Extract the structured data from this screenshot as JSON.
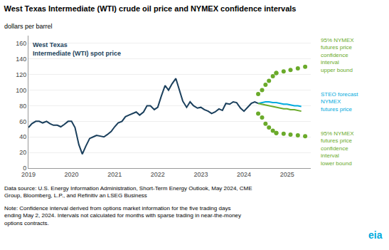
{
  "chart_data": {
    "type": "line",
    "title": "West Texas Intermediate (WTI) crude oil price and NYMEX confidence intervals",
    "y_label": "dollars per barrel",
    "xlim": [
      2019,
      2025.55
    ],
    "xticks": [
      2019,
      2020,
      2021,
      2022,
      2023,
      2024,
      2025
    ],
    "ylim": [
      0,
      170
    ],
    "yticks": [
      0,
      20,
      40,
      60,
      80,
      100,
      120,
      140,
      160
    ],
    "grid": "y",
    "series": [
      {
        "color": "#1a3f5c",
        "line_style": "solid",
        "marker": "none",
        "x": [
          2019.0,
          2019.08,
          2019.17,
          2019.25,
          2019.33,
          2019.42,
          2019.5,
          2019.58,
          2019.67,
          2019.75,
          2019.83,
          2019.92,
          2020.0,
          2020.08,
          2020.17,
          2020.25,
          2020.33,
          2020.42,
          2020.5,
          2020.58,
          2020.67,
          2020.75,
          2020.83,
          2020.92,
          2021.0,
          2021.08,
          2021.17,
          2021.25,
          2021.33,
          2021.42,
          2021.5,
          2021.58,
          2021.67,
          2021.75,
          2021.83,
          2021.92,
          2022.0,
          2022.08,
          2022.17,
          2022.25,
          2022.33,
          2022.42,
          2022.5,
          2022.58,
          2022.67,
          2022.75,
          2022.83,
          2022.92,
          2023.0,
          2023.08,
          2023.17,
          2023.25,
          2023.33,
          2023.42,
          2023.5,
          2023.58,
          2023.67,
          2023.75,
          2023.83,
          2023.92,
          2024.0,
          2024.08,
          2024.17,
          2024.25,
          2024.33
        ],
        "values": [
          52,
          57,
          60,
          60,
          58,
          60,
          57,
          55,
          55,
          53,
          56,
          60,
          60,
          52,
          30,
          18,
          28,
          38,
          40,
          42,
          41,
          40,
          43,
          47,
          53,
          58,
          60,
          66,
          68,
          70,
          72,
          68,
          72,
          80,
          80,
          75,
          78,
          92,
          106,
          100,
          108,
          115,
          100,
          86,
          78,
          85,
          80,
          77,
          78,
          75,
          73,
          70,
          72,
          76,
          74,
          83,
          82,
          85,
          84,
          77,
          73,
          78,
          83,
          85,
          83
        ]
      },
      {
        "color": "#00aadd",
        "line_style": "solid",
        "marker": "none",
        "x": [
          2024.33,
          2024.42,
          2024.5,
          2024.58,
          2024.67,
          2024.75,
          2024.83,
          2024.92,
          2025.0,
          2025.08,
          2025.17,
          2025.25,
          2025.33
        ],
        "values": [
          83,
          84,
          85,
          85,
          84,
          84,
          83,
          82,
          82,
          81,
          80,
          80,
          79
        ]
      },
      {
        "color": "#6aaa2a",
        "line_style": "solid",
        "marker": "none",
        "x": [
          2024.33,
          2024.42,
          2024.5,
          2024.58,
          2024.67,
          2024.75,
          2024.83,
          2024.92,
          2025.0,
          2025.08,
          2025.17,
          2025.25,
          2025.33
        ],
        "values": [
          83,
          82,
          81,
          80,
          79,
          78,
          77,
          76,
          76,
          75,
          75,
          74,
          73
        ]
      },
      {
        "color": "#6aaa2a",
        "line_style": "none",
        "marker": "circle",
        "x": [
          2024.33,
          2024.42,
          2024.5,
          2024.58,
          2024.67,
          2024.75
        ],
        "values": [
          95,
          100,
          107,
          112,
          118,
          122
        ]
      },
      {
        "color": "#6aaa2a",
        "line_style": "none",
        "marker": "circle",
        "x": [
          2024.75,
          2024.92,
          2025.08,
          2025.25,
          2025.42
        ],
        "values": [
          122,
          124,
          126,
          128,
          130
        ]
      },
      {
        "color": "#6aaa2a",
        "line_style": "none",
        "marker": "circle",
        "x": [
          2024.33,
          2024.42,
          2024.5,
          2024.58,
          2024.67,
          2024.75
        ],
        "values": [
          70,
          65,
          57,
          52,
          48,
          45
        ]
      },
      {
        "color": "#6aaa2a",
        "line_style": "none",
        "marker": "circle",
        "x": [
          2024.75,
          2024.92,
          2025.08,
          2025.25,
          2025.42
        ],
        "values": [
          45,
          44,
          43,
          42,
          41
        ]
      }
    ],
    "annotations": [
      {
        "text": "West Texas\nIntermediate (WTI) spot price",
        "color": "#1a3f5c"
      },
      {
        "text": "95% NYMEX\nfutures price\nconfidence\ninterval\nupper bound",
        "color": "#6aaa2a"
      },
      {
        "text": "STEO forecast\nNYMEX\nfutures price",
        "color": "#00aadd"
      },
      {
        "text": "95% NYMEX\nfutures price\nconfidence\ninterval\nlower bound",
        "color": "#6aaa2a"
      },
      {
        "text": "Data source: U.S. Energy Information Administration, Short-Term Energy Outlook, May 2024, CME\nGroup, Bloomberg, L.P., and Refinitiv an LSEG Business"
      },
      {
        "text": "Note: Confidence interval derived from options market information for the five trading days\nending May 2, 2024. Intervals not calculated for months with sparse trading in near-the-money\noptions contracts."
      },
      {
        "text": "eia",
        "color": "#00aadd"
      }
    ]
  }
}
